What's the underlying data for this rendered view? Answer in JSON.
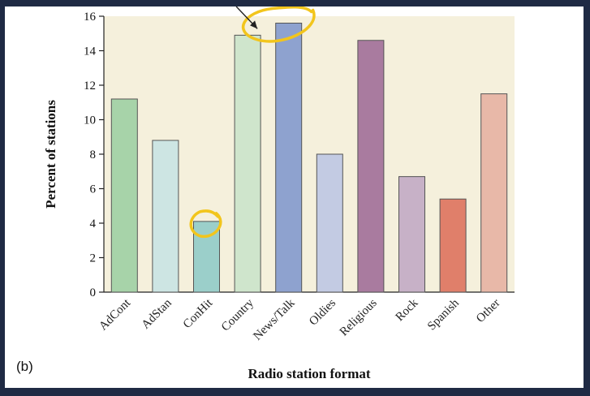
{
  "panel_label": "(b)",
  "chart_data": {
    "type": "bar",
    "categories": [
      "AdCont",
      "AdStan",
      "ConHit",
      "Country",
      "News/Talk",
      "Oldies",
      "Religious",
      "Rock",
      "Spanish",
      "Other"
    ],
    "values": [
      11.2,
      8.8,
      4.1,
      14.9,
      15.6,
      8.0,
      14.6,
      6.7,
      5.4,
      11.5
    ],
    "colors": [
      "#a7d3a9",
      "#cde5e3",
      "#9bcfca",
      "#cfe5cc",
      "#8ea2cf",
      "#c3cbe3",
      "#a97b9f",
      "#c7b1c7",
      "#e07f6a",
      "#e8b8a8"
    ],
    "xlabel": "Radio station format",
    "ylabel": "Percent of stations",
    "ylim": [
      0,
      16
    ],
    "yticks": [
      0,
      2,
      4,
      6,
      8,
      10,
      12,
      14,
      16
    ],
    "plot_background": "#f5f0dc",
    "grid": false,
    "annotations": {
      "highlight_color": "#f2c51c",
      "circled_categories": [
        "ConHit",
        "News/Talk"
      ],
      "arrow_to": "Country"
    }
  }
}
